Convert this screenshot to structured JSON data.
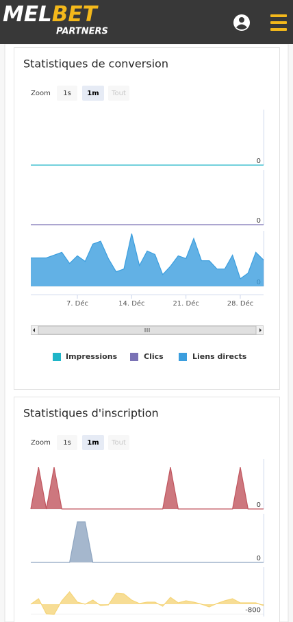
{
  "header": {
    "logo_parts": [
      "MEL",
      "BET"
    ],
    "logo_sub": "PARTNERS"
  },
  "zoom": {
    "label": "Zoom",
    "buttons": [
      "1s",
      "1m",
      "Tout"
    ]
  },
  "chart_data": [
    {
      "type": "area",
      "title": "Statistiques de conversion",
      "x": [
        1,
        2,
        3,
        4,
        5,
        6,
        7,
        8,
        9,
        10,
        11,
        12,
        13,
        14,
        15,
        16,
        17,
        18,
        19,
        20,
        21,
        22,
        23,
        24,
        25,
        26,
        27,
        28,
        29,
        30,
        31
      ],
      "xlim": [
        1,
        31
      ],
      "xticks": [
        {
          "value": 7,
          "label": "7. Déc"
        },
        {
          "value": 14,
          "label": "14. Déc"
        },
        {
          "value": 21,
          "label": "21. Déc"
        },
        {
          "value": 28,
          "label": "28. Déc"
        }
      ],
      "series": [
        {
          "name": "Impressions",
          "color": "#1fb5c8",
          "ylim": [
            0,
            80
          ],
          "yticks": [
            0
          ],
          "values": [
            0,
            0,
            0,
            0,
            0,
            0,
            0,
            0,
            0,
            0,
            0,
            0,
            0,
            0,
            0,
            0,
            0,
            0,
            0,
            0,
            0,
            0,
            0,
            0,
            0,
            0,
            0,
            0,
            0,
            0,
            0
          ]
        },
        {
          "name": "Clics",
          "color": "#7a72b5",
          "ylim": [
            0,
            80
          ],
          "yticks": [
            0
          ],
          "values": [
            0,
            0,
            0,
            0,
            0,
            0,
            0,
            0,
            0,
            0,
            0,
            0,
            0,
            0,
            0,
            0,
            0,
            0,
            0,
            0,
            0,
            0,
            0,
            0,
            0,
            0,
            0,
            0,
            0,
            0,
            0
          ]
        },
        {
          "name": "Liens directs",
          "color": "#3b9ede",
          "ylim": [
            0,
            80
          ],
          "yticks": [
            0
          ],
          "values": [
            41,
            41,
            41,
            45,
            49,
            33,
            44,
            36,
            61,
            65,
            40,
            21,
            25,
            76,
            30,
            51,
            46,
            17,
            29,
            44,
            40,
            69,
            37,
            37,
            25,
            25,
            45,
            11,
            19,
            49,
            38
          ]
        }
      ]
    },
    {
      "type": "area",
      "title": "Statistiques d'inscription",
      "x": [
        1,
        2,
        3,
        4,
        5,
        6,
        7,
        8,
        9,
        10,
        11,
        12,
        13,
        14,
        15,
        16,
        17,
        18,
        19,
        20,
        21,
        22,
        23,
        24,
        25,
        26,
        27,
        28,
        29,
        30,
        31
      ],
      "xlim": [
        1,
        31
      ],
      "series": [
        {
          "color": "#c0555e",
          "ylim": [
            0,
            1.2
          ],
          "yticks": [
            0
          ],
          "values": [
            0,
            1,
            0,
            1,
            0,
            0,
            0,
            0,
            0,
            0,
            0,
            0,
            0,
            0,
            0,
            0,
            0,
            0,
            1,
            0,
            0,
            0,
            0,
            0,
            0,
            0,
            0,
            1,
            0,
            0,
            0
          ]
        },
        {
          "color": "#8ea5c0",
          "ylim": [
            0,
            1.2
          ],
          "yticks": [
            0
          ],
          "values": [
            0,
            0,
            0,
            0,
            0,
            0,
            1,
            1,
            0,
            0,
            0,
            0,
            0,
            0,
            0,
            0,
            0,
            0,
            0,
            0,
            0,
            0,
            0,
            0,
            0,
            0,
            0,
            0,
            0,
            0,
            0
          ]
        },
        {
          "color": "#f5d57a",
          "ylim": [
            -1000,
            3000
          ],
          "yticks": [
            -800
          ],
          "values": [
            0,
            444,
            -778,
            -833,
            278,
            1000,
            167,
            0,
            333,
            -111,
            -56,
            889,
            833,
            333,
            56,
            167,
            167,
            -167,
            556,
            111,
            278,
            167,
            0,
            -222,
            56,
            278,
            444,
            111,
            111,
            111,
            -111
          ]
        }
      ]
    }
  ]
}
